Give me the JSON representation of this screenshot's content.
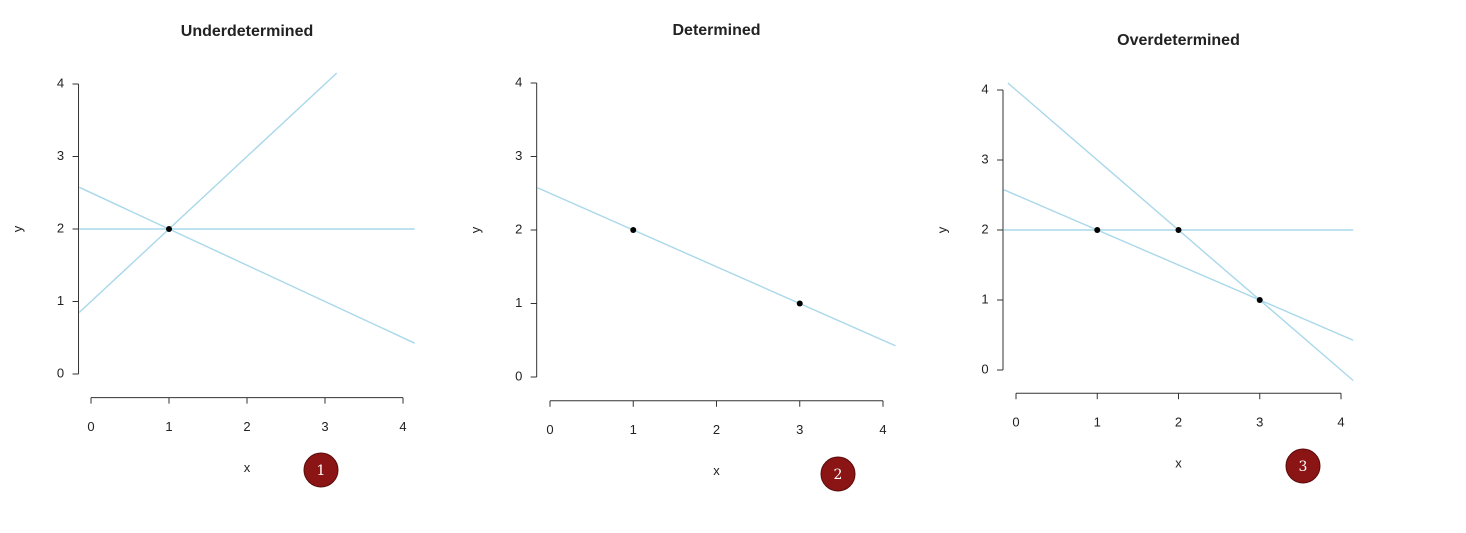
{
  "chart_data": [
    {
      "type": "line",
      "title": "Underdetermined",
      "xlabel": "x",
      "ylabel": "y",
      "xlim": [
        -0.16,
        4.16
      ],
      "ylim": [
        -0.16,
        4.16
      ],
      "xticks": [
        0,
        1,
        2,
        3,
        4
      ],
      "yticks": [
        0,
        1,
        2,
        3,
        4
      ],
      "series": [
        {
          "color": "#a8d8ea",
          "x": [
            -0.15,
            4.15
          ],
          "values": [
            2,
            2
          ]
        },
        {
          "color": "#a8d8ea",
          "x": [
            -0.15,
            3.15
          ],
          "values": [
            0.85,
            4.15
          ]
        },
        {
          "color": "#a8d8ea",
          "x": [
            -0.15,
            4.15
          ],
          "values": [
            2.575,
            0.425
          ]
        }
      ],
      "points": {
        "color": "#000000",
        "x": [
          1
        ],
        "y": [
          2
        ]
      }
    },
    {
      "type": "line",
      "title": "Determined",
      "xlabel": "x",
      "ylabel": "y",
      "xlim": [
        -0.16,
        4.16
      ],
      "ylim": [
        -0.16,
        4.16
      ],
      "xticks": [
        0,
        1,
        2,
        3,
        4
      ],
      "yticks": [
        0,
        1,
        2,
        3,
        4
      ],
      "series": [
        {
          "color": "#a8d8ea",
          "x": [
            -0.15,
            4.15
          ],
          "values": [
            2.575,
            0.425
          ]
        }
      ],
      "points": {
        "color": "#000000",
        "x": [
          1,
          3
        ],
        "y": [
          2,
          1
        ]
      }
    },
    {
      "type": "line",
      "title": "Overdetermined",
      "xlabel": "x",
      "ylabel": "y",
      "xlim": [
        -0.16,
        4.16
      ],
      "ylim": [
        -0.16,
        4.16
      ],
      "xticks": [
        0,
        1,
        2,
        3,
        4
      ],
      "yticks": [
        0,
        1,
        2,
        3,
        4
      ],
      "series": [
        {
          "color": "#a8d8ea",
          "x": [
            -0.15,
            4.15
          ],
          "values": [
            2,
            2
          ]
        },
        {
          "color": "#a8d8ea",
          "x": [
            -0.15,
            4.15
          ],
          "values": [
            2.575,
            0.425
          ]
        },
        {
          "color": "#a8d8ea",
          "x": [
            -0.1,
            4.15
          ],
          "values": [
            4.1,
            -0.15
          ]
        }
      ],
      "points": {
        "color": "#000000",
        "x": [
          1,
          2,
          3
        ],
        "y": [
          2,
          2,
          1
        ]
      }
    }
  ],
  "badges": [
    "1",
    "2",
    "3"
  ]
}
